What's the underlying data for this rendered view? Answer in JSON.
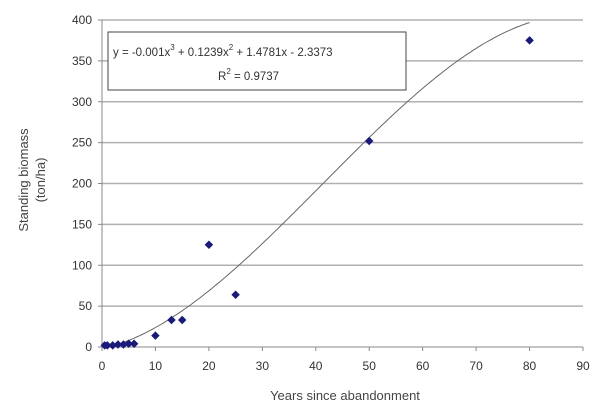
{
  "chart_data": {
    "type": "scatter",
    "xlabel": "Years since abandonment",
    "ylabel_line1": "Standing biomass",
    "ylabel_line2": "(ton/ha)",
    "xlim": [
      0,
      90
    ],
    "ylim": [
      0,
      400
    ],
    "x_ticks": [
      "0",
      "10",
      "20",
      "30",
      "40",
      "50",
      "60",
      "70",
      "80",
      "90"
    ],
    "y_ticks": [
      "0",
      "50",
      "100",
      "150",
      "200",
      "250",
      "300",
      "350",
      "400"
    ],
    "grid": "horizontal",
    "points": [
      {
        "x": 0.5,
        "y": 2
      },
      {
        "x": 1,
        "y": 2
      },
      {
        "x": 2,
        "y": 2
      },
      {
        "x": 3,
        "y": 3
      },
      {
        "x": 4,
        "y": 3
      },
      {
        "x": 5,
        "y": 4
      },
      {
        "x": 6,
        "y": 4
      },
      {
        "x": 10,
        "y": 14
      },
      {
        "x": 13,
        "y": 33
      },
      {
        "x": 15,
        "y": 33
      },
      {
        "x": 20,
        "y": 125
      },
      {
        "x": 25,
        "y": 64
      },
      {
        "x": 50,
        "y": 252
      },
      {
        "x": 80,
        "y": 375
      }
    ],
    "trendline": {
      "type": "polynomial",
      "coefficients": [
        -0.001,
        0.1239,
        1.4781,
        -2.3373
      ],
      "equation_parts": [
        "y = -0.001x",
        "3",
        " + 0.1239x",
        "2",
        " + 1.4781x - 2.3373"
      ],
      "r2_parts": [
        "R",
        "2",
        " = 0.9737"
      ]
    },
    "colors": {
      "marker": "#1a1a7a",
      "line": "#666666",
      "grid": "#b0b0b0",
      "axis": "#888888"
    }
  }
}
